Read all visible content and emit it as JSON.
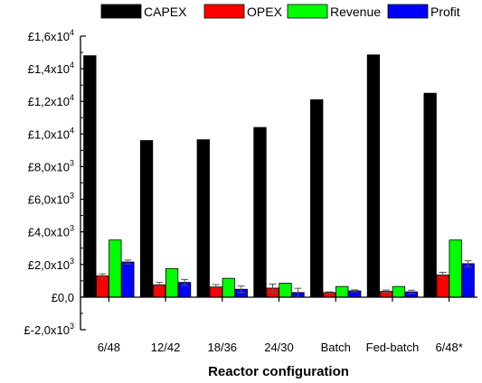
{
  "chart_data": {
    "type": "bar",
    "title": "",
    "xlabel": "Reactor configuration",
    "ylabel": "",
    "categories": [
      "6/48",
      "12/42",
      "18/36",
      "24/30",
      "Batch",
      "Fed-batch",
      "6/48*"
    ],
    "series": [
      {
        "name": "CAPEX",
        "color": "#000000",
        "values": [
          14800,
          9600,
          9650,
          10400,
          12100,
          14850,
          12500
        ],
        "errors": [
          0,
          0,
          0,
          0,
          0,
          0,
          0
        ]
      },
      {
        "name": "OPEX",
        "color": "#ff0000",
        "values": [
          1300,
          750,
          620,
          550,
          280,
          350,
          1350
        ],
        "errors": [
          120,
          150,
          150,
          250,
          40,
          80,
          170
        ]
      },
      {
        "name": "Revenue",
        "color": "#00ff00",
        "values": [
          3500,
          1750,
          1150,
          850,
          650,
          650,
          3500
        ],
        "errors": [
          0,
          0,
          0,
          0,
          0,
          0,
          0
        ]
      },
      {
        "name": "Profit",
        "color": "#0000ff",
        "values": [
          2150,
          900,
          480,
          280,
          380,
          320,
          2050
        ],
        "errors": [
          120,
          180,
          200,
          260,
          60,
          100,
          180
        ]
      }
    ],
    "ylim": [
      -2000,
      16000
    ],
    "yticks": [
      {
        "value": 16000,
        "mant": "£1,6x10",
        "exp": "4"
      },
      {
        "value": 14000,
        "mant": "£1,4x10",
        "exp": "4"
      },
      {
        "value": 12000,
        "mant": "£1,2x10",
        "exp": "4"
      },
      {
        "value": 10000,
        "mant": "£1,0x10",
        "exp": "4"
      },
      {
        "value": 8000,
        "mant": "£8,0x10",
        "exp": "3"
      },
      {
        "value": 6000,
        "mant": "£6,0x10",
        "exp": "3"
      },
      {
        "value": 4000,
        "mant": "£4,0x10",
        "exp": "3"
      },
      {
        "value": 2000,
        "mant": "£2,0x10",
        "exp": "3"
      },
      {
        "value": 0,
        "mant": "£0,0",
        "exp": ""
      },
      {
        "value": -2000,
        "mant": "£-2,0x10",
        "exp": "3"
      }
    ],
    "grid": false,
    "legend_position": "top"
  }
}
